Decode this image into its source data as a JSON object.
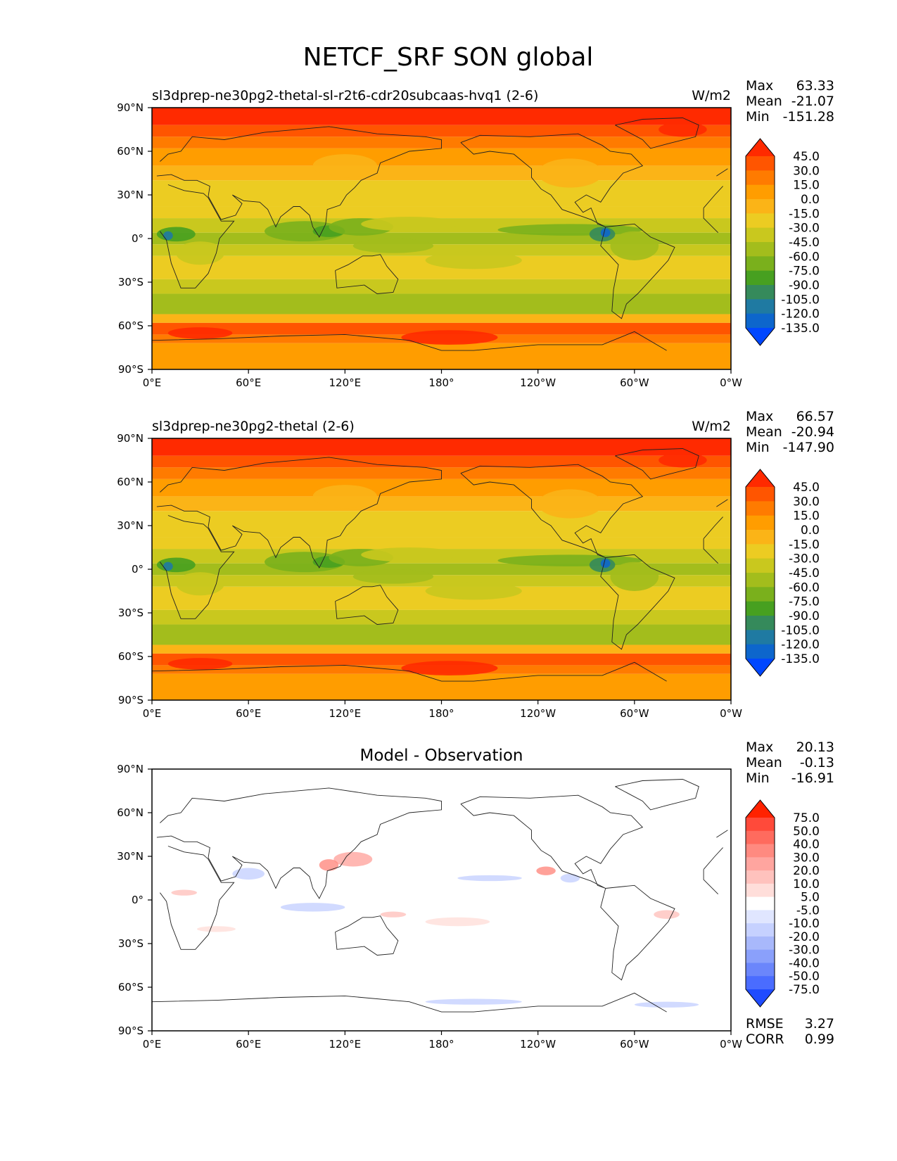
{
  "figure_title": "NETCF_SRF SON global",
  "chart_data": [
    {
      "type": "heatmap",
      "title": "sl3dprep-ne30pg2-thetal-sl-r2t6-cdr20subcaas-hvq1 (2-6)",
      "units": "W/m2",
      "xtick_labels": [
        "0°E",
        "60°E",
        "120°E",
        "180°",
        "120°W",
        "60°W",
        "0°W"
      ],
      "ytick_labels": [
        "90°N",
        "60°N",
        "30°N",
        "0°",
        "30°S",
        "60°S",
        "90°S"
      ],
      "stats": [
        {
          "label": "Max",
          "value": "63.33"
        },
        {
          "label": "Mean",
          "value": "-21.07"
        },
        {
          "label": "Min",
          "value": "-151.28"
        }
      ],
      "colorbar": {
        "levels": [
          "45.0",
          "30.0",
          "15.0",
          "0.0",
          "-15.0",
          "-30.0",
          "-45.0",
          "-60.0",
          "-75.0",
          "-90.0",
          "-105.0",
          "-120.0",
          "-135.0"
        ],
        "colors": [
          "#ff2a00",
          "#ff5500",
          "#ff7b00",
          "#ff9d00",
          "#fbb417",
          "#eccc22",
          "#c9c81e",
          "#a3bd1c",
          "#7ab01c",
          "#47a020",
          "#358a5b",
          "#1f7aa2",
          "#0d66cc",
          "#0047ff"
        ]
      }
    },
    {
      "type": "heatmap",
      "title": "sl3dprep-ne30pg2-thetal (2-6)",
      "units": "W/m2",
      "xtick_labels": [
        "0°E",
        "60°E",
        "120°E",
        "180°",
        "120°W",
        "60°W",
        "0°W"
      ],
      "ytick_labels": [
        "90°N",
        "60°N",
        "30°N",
        "0°",
        "30°S",
        "60°S",
        "90°S"
      ],
      "stats": [
        {
          "label": "Max",
          "value": "66.57"
        },
        {
          "label": "Mean",
          "value": "-20.94"
        },
        {
          "label": "Min",
          "value": "-147.90"
        }
      ],
      "colorbar": {
        "levels": [
          "45.0",
          "30.0",
          "15.0",
          "0.0",
          "-15.0",
          "-30.0",
          "-45.0",
          "-60.0",
          "-75.0",
          "-90.0",
          "-105.0",
          "-120.0",
          "-135.0"
        ],
        "colors": [
          "#ff2a00",
          "#ff5500",
          "#ff7b00",
          "#ff9d00",
          "#fbb417",
          "#eccc22",
          "#c9c81e",
          "#a3bd1c",
          "#7ab01c",
          "#47a020",
          "#358a5b",
          "#1f7aa2",
          "#0d66cc",
          "#0047ff"
        ]
      }
    },
    {
      "type": "heatmap",
      "title": "Model - Observation",
      "units": "",
      "xtick_labels": [
        "0°E",
        "60°E",
        "120°E",
        "180°",
        "120°W",
        "60°W",
        "0°W"
      ],
      "ytick_labels": [
        "90°N",
        "60°N",
        "30°N",
        "0°",
        "30°S",
        "60°S",
        "90°S"
      ],
      "stats": [
        {
          "label": "Max",
          "value": "20.13"
        },
        {
          "label": "Mean",
          "value": "-0.13"
        },
        {
          "label": "Min",
          "value": "-16.91"
        }
      ],
      "metrics": [
        {
          "label": "RMSE",
          "value": "3.27"
        },
        {
          "label": "CORR",
          "value": "0.99"
        }
      ],
      "colorbar": {
        "levels": [
          "75.0",
          "50.0",
          "40.0",
          "30.0",
          "20.0",
          "10.0",
          "5.0",
          "-5.0",
          "-10.0",
          "-20.0",
          "-30.0",
          "-40.0",
          "-50.0",
          "-75.0"
        ],
        "colors": [
          "#ff2200",
          "#ff4a3a",
          "#ff6b5e",
          "#ff8a80",
          "#ffa59f",
          "#ffc2bd",
          "#ffdeda",
          "#ffffff",
          "#e0e6ff",
          "#c6d1ff",
          "#a8b8fb",
          "#8aa0fb",
          "#6b86fb",
          "#4a6cff",
          "#1f4bff"
        ]
      }
    }
  ]
}
